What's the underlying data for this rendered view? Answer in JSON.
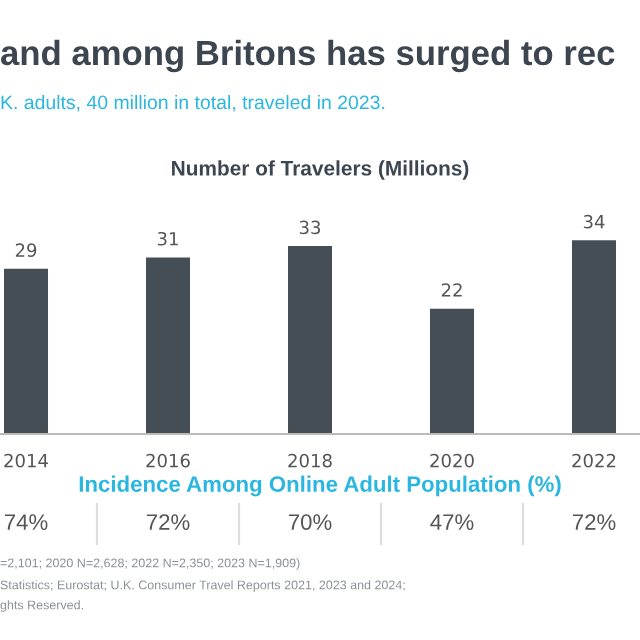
{
  "chart_data": {
    "type": "bar",
    "title": "and among Britons has surged to rec",
    "subtitle": "K. adults, 40 million in total, traveled in 2023.",
    "xlabel": "Number of Travelers (Millions)",
    "categories": [
      "2014",
      "2016",
      "2018",
      "2020",
      "2022"
    ],
    "series": [
      {
        "color": "#454d55",
        "values": [
          29,
          31,
          33,
          22,
          34
        ]
      }
    ],
    "data_labels": true,
    "grid": false,
    "legend": false,
    "annotations": [
      "Incidence Among Online Adult Population (%)",
      "74%",
      "72%",
      "70%",
      "47%",
      "72%",
      "=2,101; 2020 N=2,628; 2022 N=2,350; 2023 N=1,909)",
      "Statistics; Eurostat; U.K. Consumer Travel Reports 2021, 2023 and 2024;",
      "ghts Reserved."
    ]
  }
}
